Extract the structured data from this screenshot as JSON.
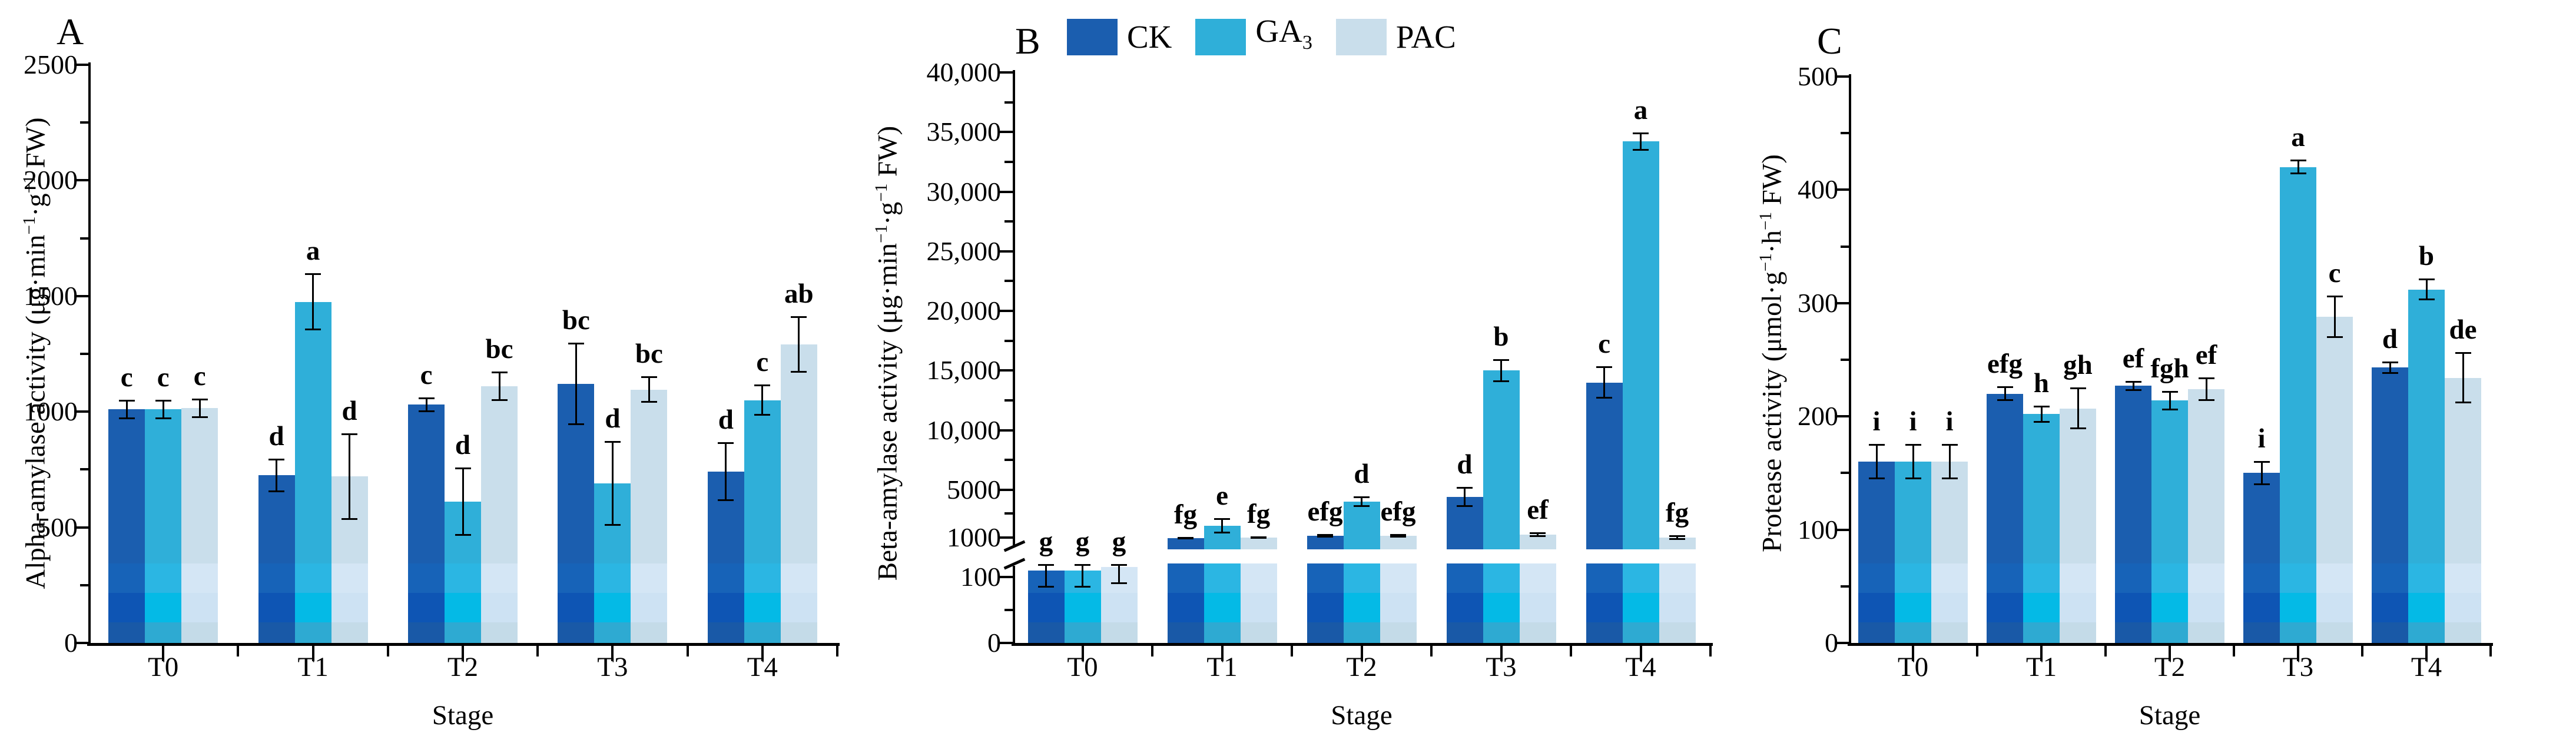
{
  "figure": {
    "legend": [
      {
        "name": "CK",
        "label": "CK",
        "color": "#1B5EAF"
      },
      {
        "name": "GA_3",
        "label": "GA_3",
        "color": "#2FAFD9"
      },
      {
        "name": "PAC",
        "label": "PAC",
        "color": "#C9DEEB"
      }
    ]
  },
  "chart_data": [
    {
      "type": "bar",
      "panel_label": "A",
      "ylabel": "Alpha-amylase activity (μg·min^-1·g^-1 FW)",
      "xlabel": "Stage",
      "categories": [
        "T0",
        "T1",
        "T2",
        "T3",
        "T4"
      ],
      "axis": {
        "scale": "linear",
        "ylim": [
          0,
          2500
        ],
        "major_ticks": [
          {
            "v": 0,
            "label": "0"
          },
          {
            "v": 500,
            "label": "500"
          },
          {
            "v": 1000,
            "label": "1000"
          },
          {
            "v": 1500,
            "label": "1500"
          },
          {
            "v": 2000,
            "label": "2000"
          },
          {
            "v": 2500,
            "label": "2500"
          }
        ],
        "minor_ticks": [
          250,
          750,
          1250,
          1750,
          2250
        ],
        "grid": false
      },
      "series": [
        {
          "name": "CK",
          "values": [
            1010,
            725,
            1030,
            1120,
            740
          ],
          "errors": [
            40,
            70,
            30,
            175,
            125
          ],
          "letters": [
            "c",
            "d",
            "c",
            "bc",
            "d"
          ]
        },
        {
          "name": "GA_3",
          "values": [
            1010,
            1475,
            610,
            690,
            1050
          ],
          "errors": [
            40,
            120,
            145,
            180,
            65
          ],
          "letters": [
            "c",
            "a",
            "d",
            "d",
            "c"
          ]
        },
        {
          "name": "PAC",
          "values": [
            1015,
            720,
            1110,
            1095,
            1290
          ],
          "errors": [
            40,
            185,
            60,
            55,
            120
          ],
          "letters": [
            "c",
            "d",
            "bc",
            "bc",
            "ab"
          ]
        }
      ]
    },
    {
      "type": "bar",
      "panel_label": "B",
      "ylabel": "Beta-amylase activity (μg·min^-1·g^-1 FW)",
      "xlabel": "Stage",
      "categories": [
        "T0",
        "T1",
        "T2",
        "T3",
        "T4"
      ],
      "axis": {
        "scale": "broken",
        "ylim": [
          0,
          40000
        ],
        "break_between": [
          150,
          1000
        ],
        "major_ticks": [
          {
            "v": 0,
            "label": "0"
          },
          {
            "v": 100,
            "label": "100"
          },
          {
            "v": 1000,
            "label": "1000"
          },
          {
            "v": 5000,
            "label": "5000"
          },
          {
            "v": 10000,
            "label": "10,000"
          },
          {
            "v": 15000,
            "label": "15,000"
          },
          {
            "v": 20000,
            "label": "20,000"
          },
          {
            "v": 25000,
            "label": "25,000"
          },
          {
            "v": 30000,
            "label": "30,000"
          },
          {
            "v": 35000,
            "label": "35,000"
          },
          {
            "v": 40000,
            "label": "40,000"
          }
        ],
        "minor_ticks": [
          50,
          3000,
          7500,
          12500,
          17500,
          22500,
          27500,
          32500,
          37500
        ],
        "grid": false
      },
      "series": [
        {
          "name": "CK",
          "values": [
            110,
            950,
            1150,
            4400,
            14000
          ],
          "errors": [
            25,
            40,
            120,
            800,
            1300
          ],
          "letters": [
            "g",
            "fg",
            "efg",
            "d",
            "c"
          ]
        },
        {
          "name": "GA_3",
          "values": [
            110,
            2000,
            4000,
            15000,
            34200
          ],
          "errors": [
            25,
            600,
            400,
            900,
            700
          ],
          "letters": [
            "g",
            "e",
            "d",
            "b",
            "a"
          ]
        },
        {
          "name": "PAC",
          "values": [
            115,
            1000,
            1150,
            1250,
            1000
          ],
          "errors": [
            25,
            60,
            120,
            130,
            150
          ],
          "letters": [
            "g",
            "fg",
            "efg",
            "ef",
            "fg"
          ]
        }
      ]
    },
    {
      "type": "bar",
      "panel_label": "C",
      "ylabel": "Protease activity (μmol·g^-1·h^-1 FW)",
      "xlabel": "Stage",
      "categories": [
        "T0",
        "T1",
        "T2",
        "T3",
        "T4"
      ],
      "axis": {
        "scale": "linear",
        "ylim": [
          0,
          500
        ],
        "major_ticks": [
          {
            "v": 0,
            "label": "0"
          },
          {
            "v": 100,
            "label": "100"
          },
          {
            "v": 200,
            "label": "200"
          },
          {
            "v": 300,
            "label": "300"
          },
          {
            "v": 400,
            "label": "400"
          },
          {
            "v": 500,
            "label": "500"
          }
        ],
        "minor_ticks": [
          50,
          150,
          250,
          350,
          450
        ],
        "grid": false
      },
      "series": [
        {
          "name": "CK",
          "values": [
            160,
            220,
            227,
            150,
            243
          ],
          "errors": [
            15,
            6,
            4,
            10,
            5
          ],
          "letters": [
            "i",
            "efg",
            "ef",
            "i",
            "d"
          ]
        },
        {
          "name": "GA_3",
          "values": [
            160,
            202,
            214,
            420,
            312
          ],
          "errors": [
            15,
            7,
            8,
            6,
            9
          ],
          "letters": [
            "i",
            "h",
            "fgh",
            "a",
            "b"
          ]
        },
        {
          "name": "PAC",
          "values": [
            160,
            207,
            224,
            288,
            234
          ],
          "errors": [
            15,
            18,
            10,
            18,
            22
          ],
          "letters": [
            "i",
            "gh",
            "ef",
            "c",
            "de"
          ]
        }
      ]
    }
  ]
}
